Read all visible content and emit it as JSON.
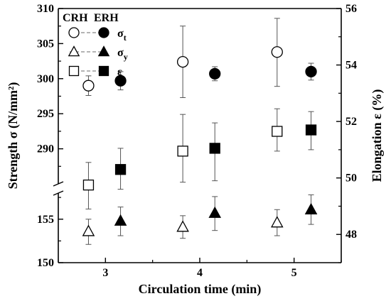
{
  "chart_data": {
    "type": "scatter",
    "title": "",
    "xlabel": "Circulation time (min)",
    "ylabel_left": "Strength σ (N/mm²)",
    "ylabel_right": "Elongation ε (%)",
    "x_ticks": [
      "3",
      "4",
      "5"
    ],
    "xlim": [
      2.5,
      5.5
    ],
    "y_left_upper": {
      "range": [
        285,
        310
      ],
      "ticks": [
        "290",
        "295",
        "300",
        "305",
        "310"
      ]
    },
    "y_left_lower": {
      "range": [
        150,
        158
      ],
      "ticks": [
        "150",
        "155"
      ]
    },
    "y_left_break": "between 158 and 285",
    "y_right": {
      "range": [
        47,
        56
      ],
      "ticks": [
        "48",
        "50",
        "52",
        "54",
        "56"
      ]
    },
    "legend": {
      "headers": [
        "CRH",
        "ERH"
      ],
      "placement": "top-left",
      "entries": [
        {
          "symbol": "σ",
          "sub": "t"
        },
        {
          "symbol": "σ",
          "sub": "y"
        },
        {
          "symbol": "ε",
          "sub": ""
        }
      ]
    },
    "series": [
      {
        "method": "CRH",
        "quantity": "σt",
        "marker": "circle",
        "filled": false,
        "axis": "left",
        "x": [
          2.82,
          3.82,
          4.82
        ],
        "y": [
          299.0,
          302.4,
          303.8
        ],
        "err_low": [
          297.6,
          297.3,
          298.9
        ],
        "err_high": [
          300.4,
          307.5,
          308.6
        ]
      },
      {
        "method": "ERH",
        "quantity": "σt",
        "marker": "circle",
        "filled": true,
        "axis": "left",
        "x": [
          3.16,
          4.16,
          5.18
        ],
        "y": [
          299.7,
          300.7,
          301.0
        ],
        "err_low": [
          298.4,
          299.7,
          299.8
        ],
        "err_high": [
          301.0,
          301.7,
          302.2
        ]
      },
      {
        "method": "CRH",
        "quantity": "σy",
        "marker": "triangle",
        "filled": false,
        "axis": "left",
        "x": [
          2.82,
          3.82,
          4.82
        ],
        "y": [
          153.6,
          154.1,
          154.6
        ],
        "err_low": [
          152.1,
          152.8,
          153.1
        ],
        "err_high": [
          155.0,
          155.4,
          156.1
        ]
      },
      {
        "method": "ERH",
        "quantity": "σy",
        "marker": "triangle",
        "filled": true,
        "axis": "left",
        "x": [
          3.16,
          4.16,
          5.18
        ],
        "y": [
          154.8,
          155.7,
          156.1
        ],
        "err_low": [
          153.1,
          153.7,
          154.4
        ],
        "err_high": [
          156.4,
          157.6,
          157.8
        ]
      },
      {
        "method": "CRH",
        "quantity": "ε",
        "marker": "square",
        "filled": false,
        "axis": "right",
        "x": [
          2.82,
          3.82,
          4.82
        ],
        "y": [
          49.75,
          50.95,
          51.65
        ],
        "err_low": [
          48.9,
          49.85,
          50.95
        ],
        "err_high": [
          50.55,
          52.25,
          52.45
        ]
      },
      {
        "method": "ERH",
        "quantity": "ε",
        "marker": "square",
        "filled": true,
        "axis": "right",
        "x": [
          3.16,
          4.16,
          5.18
        ],
        "y": [
          50.3,
          51.05,
          51.7
        ],
        "err_low": [
          49.6,
          49.9,
          51.0
        ],
        "err_high": [
          51.05,
          51.95,
          52.35
        ]
      }
    ]
  }
}
